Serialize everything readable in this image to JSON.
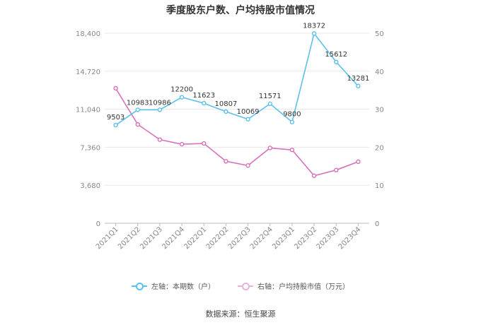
{
  "colors": {
    "left_series": "#5bc0eb",
    "right_series": "#d870b8",
    "grid": "#e8e8e8",
    "axis_text": "#888888"
  },
  "legend": {
    "left_label": "左轴：本期数（户）",
    "right_label": "右轴：户均持股市值（万元）"
  },
  "source": "数据来源：恒生聚源",
  "chart_data": {
    "type": "line",
    "title": "季度股东户数、户均持股市值情况",
    "categories": [
      "2021Q1",
      "2021Q2",
      "2021Q3",
      "2021Q4",
      "2022Q1",
      "2022Q2",
      "2022Q3",
      "2022Q4",
      "2023Q1",
      "2023Q2",
      "2023Q3",
      "2023Q4"
    ],
    "left_axis": {
      "ticks": [
        "0",
        "3,680",
        "7,360",
        "11,040",
        "14,720",
        "18,400"
      ],
      "range": [
        0,
        18400
      ]
    },
    "right_axis": {
      "ticks": [
        "0",
        "10",
        "20",
        "30",
        "40",
        "50"
      ],
      "range": [
        0,
        50
      ]
    },
    "series": [
      {
        "name": "左轴：本期数（户）",
        "axis": "left",
        "values": [
          9503,
          10983,
          10986,
          12200,
          11623,
          10807,
          10069,
          11571,
          9800,
          18372,
          15612,
          13281
        ],
        "labels": [
          "9503",
          "10983",
          "10986",
          "12200",
          "11623",
          "10807",
          "10069",
          "11571",
          "9800",
          "18372",
          "15612",
          "13281"
        ]
      },
      {
        "name": "右轴：户均持股市值（万元）",
        "axis": "right",
        "values": [
          35.5,
          26.0,
          22.0,
          20.8,
          21.0,
          16.3,
          15.2,
          19.8,
          19.3,
          12.5,
          14.0,
          16.2
        ]
      }
    ],
    "grid": true,
    "legend_position": "bottom"
  }
}
